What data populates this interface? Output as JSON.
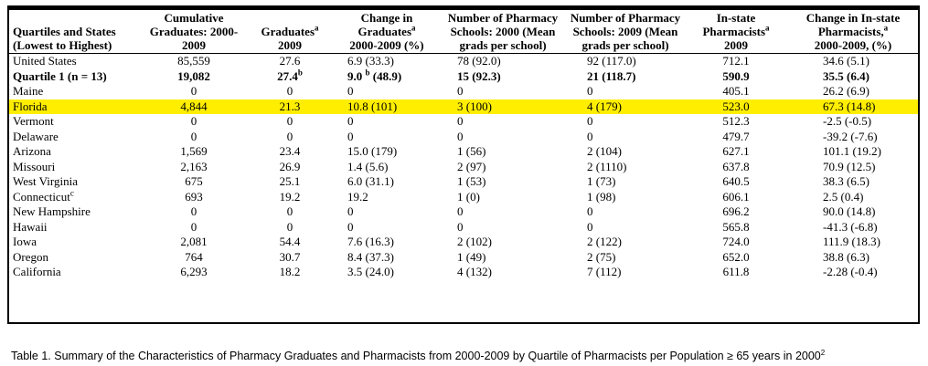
{
  "table": {
    "headers": [
      {
        "text": "Quartiles and States (Lowest to Highest)",
        "sup": ""
      },
      {
        "text": "Cumulative Graduates: 2000-2009",
        "sup": ""
      },
      {
        "text": "Graduates",
        "sup": "a",
        "after": "2009"
      },
      {
        "text": "Change in Graduates",
        "sup": "a",
        "after": "2000-2009 (%)"
      },
      {
        "text": "Number of Pharmacy Schools: 2000 (Mean grads per school)",
        "sup": ""
      },
      {
        "text": "Number of Pharmacy Schools: 2009 (Mean grads per school)",
        "sup": ""
      },
      {
        "text": "In-state Pharmacists",
        "sup": "a",
        "after": "2009"
      },
      {
        "text": "Change in In-state Pharmacists,",
        "sup": "a",
        "after": "2000-2009, (%)"
      }
    ],
    "rows": [
      {
        "state": "United States",
        "state_sup": "",
        "cumulative": "85,559",
        "grad2009": "27.6",
        "grad2009_sup": "",
        "change": "6.9 (33.3)",
        "change_sup": "",
        "change_rest": "",
        "schools2000": "78 (92.0)",
        "schools2009": "92 (117.0)",
        "pharmacists": "712.1",
        "pharm_change": "34.6 (5.1)",
        "style": ""
      },
      {
        "state": "Quartile 1 (n = 13)",
        "state_sup": "",
        "cumulative": "19,082",
        "grad2009": "27.4",
        "grad2009_sup": "b",
        "change": "9.0 ",
        "change_sup": "b",
        "change_rest": " (48.9)",
        "schools2000": "15 (92.3)",
        "schools2009": "21 (118.7)",
        "pharmacists": "590.9",
        "pharm_change": "35.5 (6.4)",
        "style": "bold"
      },
      {
        "state": "Maine",
        "state_sup": "",
        "cumulative": "0",
        "grad2009": "0",
        "grad2009_sup": "",
        "change": "0",
        "change_sup": "",
        "change_rest": "",
        "schools2000": "0",
        "schools2009": "0",
        "pharmacists": "405.1",
        "pharm_change": "26.2 (6.9)",
        "style": ""
      },
      {
        "state": "Florida",
        "state_sup": "",
        "cumulative": "4,844",
        "grad2009": "21.3",
        "grad2009_sup": "",
        "change": "10.8 (101)",
        "change_sup": "",
        "change_rest": "",
        "schools2000": "3 (100)",
        "schools2009": "4 (179)",
        "pharmacists": "523.0",
        "pharm_change": "67.3 (14.8)",
        "style": "hl"
      },
      {
        "state": "Vermont",
        "state_sup": "",
        "cumulative": "0",
        "grad2009": "0",
        "grad2009_sup": "",
        "change": "0",
        "change_sup": "",
        "change_rest": "",
        "schools2000": "0",
        "schools2009": "0",
        "pharmacists": "512.3",
        "pharm_change": "-2.5 (-0.5)",
        "style": ""
      },
      {
        "state": "Delaware",
        "state_sup": "",
        "cumulative": "0",
        "grad2009": "0",
        "grad2009_sup": "",
        "change": "0",
        "change_sup": "",
        "change_rest": "",
        "schools2000": "0",
        "schools2009": "0",
        "pharmacists": "479.7",
        "pharm_change": "-39.2 (-7.6)",
        "style": ""
      },
      {
        "state": "Arizona",
        "state_sup": "",
        "cumulative": "1,569",
        "grad2009": "23.4",
        "grad2009_sup": "",
        "change": "15.0 (179)",
        "change_sup": "",
        "change_rest": "",
        "schools2000": "1 (56)",
        "schools2009": "2 (104)",
        "pharmacists": "627.1",
        "pharm_change": "101.1 (19.2)",
        "style": ""
      },
      {
        "state": "Missouri",
        "state_sup": "",
        "cumulative": "2,163",
        "grad2009": "26.9",
        "grad2009_sup": "",
        "change": "1.4 (5.6)",
        "change_sup": "",
        "change_rest": "",
        "schools2000": "2 (97)",
        "schools2009": "2 (1110)",
        "pharmacists": "637.8",
        "pharm_change": "70.9 (12.5)",
        "style": ""
      },
      {
        "state": "West Virginia",
        "state_sup": "",
        "cumulative": "675",
        "grad2009": "25.1",
        "grad2009_sup": "",
        "change": "6.0 (31.1)",
        "change_sup": "",
        "change_rest": "",
        "schools2000": "1 (53)",
        "schools2009": "1 (73)",
        "pharmacists": "640.5",
        "pharm_change": "38.3 (6.5)",
        "style": ""
      },
      {
        "state": "Connecticut",
        "state_sup": "c",
        "cumulative": "693",
        "grad2009": "19.2",
        "grad2009_sup": "",
        "change": "19.2",
        "change_sup": "",
        "change_rest": "",
        "schools2000": "1 (0)",
        "schools2009": "1 (98)",
        "pharmacists": "606.1",
        "pharm_change": "2.5 (0.4)",
        "style": ""
      },
      {
        "state": "New Hampshire",
        "state_sup": "",
        "cumulative": "0",
        "grad2009": "0",
        "grad2009_sup": "",
        "change": "0",
        "change_sup": "",
        "change_rest": "",
        "schools2000": "0",
        "schools2009": "0",
        "pharmacists": "696.2",
        "pharm_change": "90.0 (14.8)",
        "style": ""
      },
      {
        "state": "Hawaii",
        "state_sup": "",
        "cumulative": "0",
        "grad2009": "0",
        "grad2009_sup": "",
        "change": "0",
        "change_sup": "",
        "change_rest": "",
        "schools2000": "0",
        "schools2009": "0",
        "pharmacists": "565.8",
        "pharm_change": "-41.3 (-6.8)",
        "style": ""
      },
      {
        "state": "Iowa",
        "state_sup": "",
        "cumulative": "2,081",
        "grad2009": "54.4",
        "grad2009_sup": "",
        "change": "7.6 (16.3)",
        "change_sup": "",
        "change_rest": "",
        "schools2000": "2 (102)",
        "schools2009": "2 (122)",
        "pharmacists": "724.0",
        "pharm_change": "111.9 (18.3)",
        "style": ""
      },
      {
        "state": "Oregon",
        "state_sup": "",
        "cumulative": "764",
        "grad2009": "30.7",
        "grad2009_sup": "",
        "change": "8.4 (37.3)",
        "change_sup": "",
        "change_rest": "",
        "schools2000": "1 (49)",
        "schools2009": "2 (75)",
        "pharmacists": "652.0",
        "pharm_change": "38.8 (6.3)",
        "style": ""
      },
      {
        "state": "California",
        "state_sup": "",
        "cumulative": "6,293",
        "grad2009": "18.2",
        "grad2009_sup": "",
        "change": "3.5 (24.0)",
        "change_sup": "",
        "change_rest": "",
        "schools2000": "4 (132)",
        "schools2009": "7 (112)",
        "pharmacists": "611.8",
        "pharm_change": "-2.28 (-0.4)",
        "style": ""
      }
    ]
  },
  "caption": {
    "text": "Table 1. Summary of the Characteristics of Pharmacy Graduates and Pharmacists from 2000-2009 by Quartile of Pharmacists per Population ≥ 65 years in 2000",
    "sup": "2"
  },
  "colors": {
    "highlight": "#ffee00",
    "text": "#000000",
    "border": "#000000"
  }
}
